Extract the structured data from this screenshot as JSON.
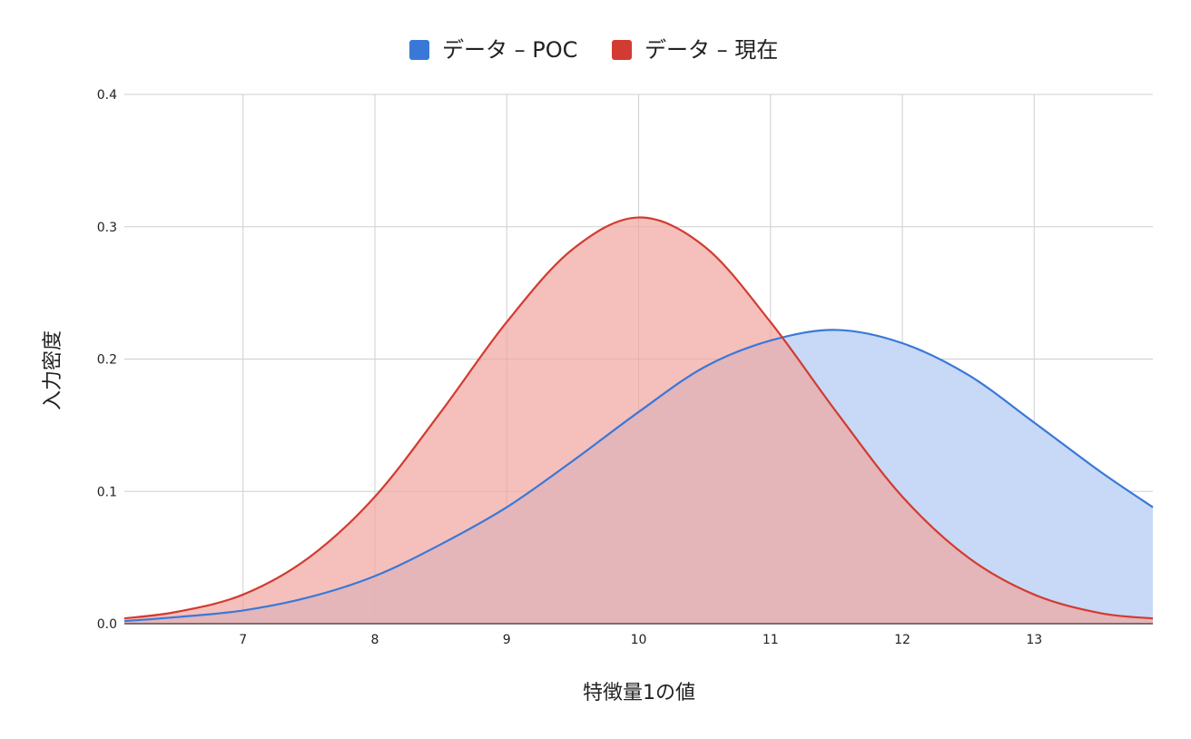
{
  "chart_data": {
    "type": "area",
    "title": "",
    "xlabel": "特徴量1の値",
    "ylabel": "入力密度",
    "xlim": [
      6.1,
      13.9
    ],
    "ylim": [
      0,
      0.4
    ],
    "x_ticks": [
      "7",
      "8",
      "9",
      "10",
      "11",
      "12",
      "13"
    ],
    "y_ticks": [
      "0.0",
      "0.1",
      "0.2",
      "0.3",
      "0.4"
    ],
    "grid": true,
    "legend_position": "top",
    "x": [
      6.1,
      6.5,
      7.0,
      7.5,
      8.0,
      8.5,
      9.0,
      9.5,
      10.0,
      10.5,
      11.0,
      11.5,
      12.0,
      12.5,
      13.0,
      13.5,
      13.9
    ],
    "series": [
      {
        "name": "データ – POC",
        "color": "#3a78d8",
        "fill": "#c4d7f6",
        "values": [
          0.002,
          0.005,
          0.01,
          0.02,
          0.036,
          0.06,
          0.088,
          0.123,
          0.16,
          0.194,
          0.214,
          0.222,
          0.212,
          0.188,
          0.152,
          0.115,
          0.088
        ]
      },
      {
        "name": "データ – 現在",
        "color": "#d23b31",
        "fill": "#f1a5a0",
        "values": [
          0.004,
          0.009,
          0.022,
          0.05,
          0.096,
          0.16,
          0.228,
          0.283,
          0.307,
          0.285,
          0.228,
          0.16,
          0.096,
          0.05,
          0.022,
          0.008,
          0.004
        ]
      }
    ]
  }
}
